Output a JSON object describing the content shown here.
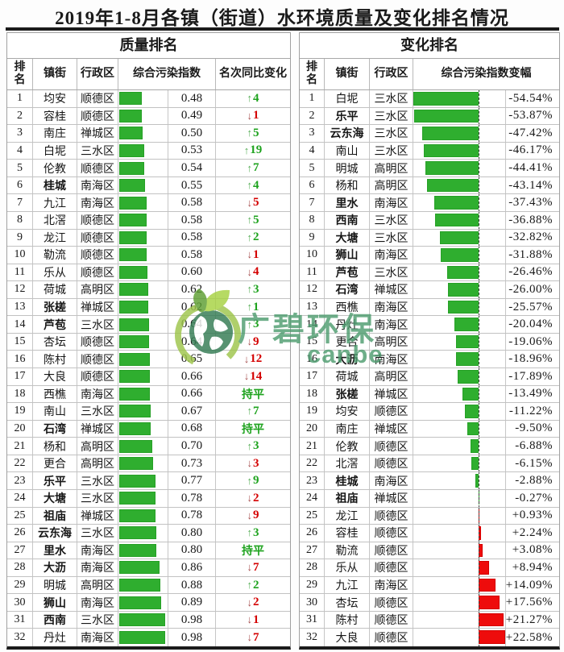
{
  "title": "2019年1-8月各镇（街道）水环境质量及变化排名情况",
  "watermark": {
    "brand": "广碧环保",
    "sub": "canbe",
    "color": "#4f9d70"
  },
  "colors": {
    "bar_green": "#2fae2f",
    "bar_green_border": "#26a026",
    "bar_red": "#ee0c0c",
    "bar_red_border": "#d40000",
    "up": "#1fa31f",
    "up_arrow": "#55ad55",
    "down": "#d40000",
    "down_arrow": "#a85252",
    "flat": "#1fa31f"
  },
  "quality": {
    "section_title": "质量排名",
    "headers": {
      "rank": "排名",
      "town": "镇街",
      "district": "行政区",
      "index": "综合污染指数",
      "change": "名次同比变化"
    },
    "flat_label": "持平",
    "rows": [
      {
        "rank": 1,
        "town": "均安",
        "district": "顺德区",
        "index": 0.48,
        "display": "0.48",
        "dir": "up",
        "n": 4,
        "bold": false
      },
      {
        "rank": 2,
        "town": "容桂",
        "district": "顺德区",
        "index": 0.49,
        "display": "0.49",
        "dir": "down",
        "n": 1,
        "bold": false
      },
      {
        "rank": 3,
        "town": "南庄",
        "district": "禅城区",
        "index": 0.5,
        "display": "0.50",
        "dir": "up",
        "n": 5,
        "bold": false
      },
      {
        "rank": 4,
        "town": "白坭",
        "district": "三水区",
        "index": 0.53,
        "display": "0.53",
        "dir": "up",
        "n": 19,
        "bold": false
      },
      {
        "rank": 5,
        "town": "伦教",
        "district": "顺德区",
        "index": 0.54,
        "display": "0.54",
        "dir": "up",
        "n": 7,
        "bold": false
      },
      {
        "rank": 6,
        "town": "桂城",
        "district": "南海区",
        "index": 0.55,
        "display": "0.55",
        "dir": "up",
        "n": 4,
        "bold": true
      },
      {
        "rank": 7,
        "town": "九江",
        "district": "南海区",
        "index": 0.58,
        "display": "0.58",
        "dir": "down",
        "n": 5,
        "bold": false
      },
      {
        "rank": 8,
        "town": "北滘",
        "district": "顺德区",
        "index": 0.58,
        "display": "0.58",
        "dir": "up",
        "n": 5,
        "bold": false
      },
      {
        "rank": 9,
        "town": "龙江",
        "district": "顺德区",
        "index": 0.58,
        "display": "0.58",
        "dir": "up",
        "n": 2,
        "bold": false
      },
      {
        "rank": 10,
        "town": "勒流",
        "district": "顺德区",
        "index": 0.58,
        "display": "0.58",
        "dir": "down",
        "n": 1,
        "bold": false
      },
      {
        "rank": 11,
        "town": "乐从",
        "district": "顺德区",
        "index": 0.6,
        "display": "0.60",
        "dir": "down",
        "n": 4,
        "bold": false
      },
      {
        "rank": 12,
        "town": "荷城",
        "district": "高明区",
        "index": 0.62,
        "display": "0.62",
        "dir": "up",
        "n": 3,
        "bold": false
      },
      {
        "rank": 13,
        "town": "张槎",
        "district": "禅城区",
        "index": 0.62,
        "display": "0.62",
        "dir": "up",
        "n": 1,
        "bold": true
      },
      {
        "rank": 14,
        "town": "芦苞",
        "district": "三水区",
        "index": 0.64,
        "display": "0.64",
        "dir": "up",
        "n": 3,
        "bold": true
      },
      {
        "rank": 15,
        "town": "杏坛",
        "district": "顺德区",
        "index": 0.64,
        "display": "0.64",
        "dir": "down",
        "n": 9,
        "bold": false
      },
      {
        "rank": 16,
        "town": "陈村",
        "district": "顺德区",
        "index": 0.65,
        "display": "0.65",
        "dir": "down",
        "n": 12,
        "bold": false
      },
      {
        "rank": 17,
        "town": "大良",
        "district": "顺德区",
        "index": 0.66,
        "display": "0.66",
        "dir": "down",
        "n": 14,
        "bold": false
      },
      {
        "rank": 18,
        "town": "西樵",
        "district": "南海区",
        "index": 0.66,
        "display": "0.66",
        "dir": "flat",
        "n": null,
        "bold": false
      },
      {
        "rank": 19,
        "town": "南山",
        "district": "三水区",
        "index": 0.67,
        "display": "0.67",
        "dir": "up",
        "n": 7,
        "bold": false
      },
      {
        "rank": 20,
        "town": "石湾",
        "district": "禅城区",
        "index": 0.68,
        "display": "0.68",
        "dir": "flat",
        "n": null,
        "bold": true
      },
      {
        "rank": 21,
        "town": "杨和",
        "district": "高明区",
        "index": 0.7,
        "display": "0.70",
        "dir": "up",
        "n": 3,
        "bold": false
      },
      {
        "rank": 22,
        "town": "更合",
        "district": "高明区",
        "index": 0.73,
        "display": "0.73",
        "dir": "down",
        "n": 3,
        "bold": false
      },
      {
        "rank": 23,
        "town": "乐平",
        "district": "三水区",
        "index": 0.77,
        "display": "0.77",
        "dir": "up",
        "n": 9,
        "bold": true
      },
      {
        "rank": 24,
        "town": "大塘",
        "district": "三水区",
        "index": 0.78,
        "display": "0.78",
        "dir": "down",
        "n": 2,
        "bold": true
      },
      {
        "rank": 25,
        "town": "祖庙",
        "district": "禅城区",
        "index": 0.78,
        "display": "0.78",
        "dir": "down",
        "n": 9,
        "bold": true
      },
      {
        "rank": 26,
        "town": "云东海",
        "district": "三水区",
        "index": 0.8,
        "display": "0.80",
        "dir": "up",
        "n": 3,
        "bold": true
      },
      {
        "rank": 27,
        "town": "里水",
        "district": "南海区",
        "index": 0.8,
        "display": "0.80",
        "dir": "flat",
        "n": null,
        "bold": true
      },
      {
        "rank": 28,
        "town": "大沥",
        "district": "南海区",
        "index": 0.86,
        "display": "0.86",
        "dir": "down",
        "n": 7,
        "bold": true
      },
      {
        "rank": 29,
        "town": "明城",
        "district": "高明区",
        "index": 0.88,
        "display": "0.88",
        "dir": "up",
        "n": 2,
        "bold": false
      },
      {
        "rank": 30,
        "town": "狮山",
        "district": "南海区",
        "index": 0.89,
        "display": "0.89",
        "dir": "down",
        "n": 2,
        "bold": true
      },
      {
        "rank": 31,
        "town": "西南",
        "district": "三水区",
        "index": 0.98,
        "display": "0.98",
        "dir": "down",
        "n": 1,
        "bold": true
      },
      {
        "rank": 32,
        "town": "丹灶",
        "district": "南海区",
        "index": 0.98,
        "display": "0.98",
        "dir": "down",
        "n": 7,
        "bold": false
      }
    ]
  },
  "change": {
    "section_title": "变化排名",
    "headers": {
      "rank": "排名",
      "town": "镇街",
      "district": "行政区",
      "delta": "综合污染指数变幅"
    },
    "rows": [
      {
        "rank": 1,
        "town": "白坭",
        "district": "三水区",
        "delta": -54.54,
        "label": "-54.54%",
        "bold": false
      },
      {
        "rank": 2,
        "town": "乐平",
        "district": "三水区",
        "delta": -53.87,
        "label": "-53.87%",
        "bold": true
      },
      {
        "rank": 3,
        "town": "云东海",
        "district": "三水区",
        "delta": -47.42,
        "label": "-47.42%",
        "bold": true
      },
      {
        "rank": 4,
        "town": "南山",
        "district": "三水区",
        "delta": -46.17,
        "label": "-46.17%",
        "bold": false
      },
      {
        "rank": 5,
        "town": "明城",
        "district": "高明区",
        "delta": -44.41,
        "label": "-44.41%",
        "bold": false
      },
      {
        "rank": 6,
        "town": "杨和",
        "district": "高明区",
        "delta": -43.14,
        "label": "-43.14%",
        "bold": false
      },
      {
        "rank": 7,
        "town": "里水",
        "district": "南海区",
        "delta": -37.43,
        "label": "-37.43%",
        "bold": true
      },
      {
        "rank": 8,
        "town": "西南",
        "district": "三水区",
        "delta": -36.88,
        "label": "-36.88%",
        "bold": true
      },
      {
        "rank": 9,
        "town": "大塘",
        "district": "三水区",
        "delta": -32.82,
        "label": "-32.82%",
        "bold": true
      },
      {
        "rank": 10,
        "town": "狮山",
        "district": "南海区",
        "delta": -31.88,
        "label": "-31.88%",
        "bold": true
      },
      {
        "rank": 11,
        "town": "芦苞",
        "district": "三水区",
        "delta": -26.46,
        "label": "-26.46%",
        "bold": true
      },
      {
        "rank": 12,
        "town": "石湾",
        "district": "禅城区",
        "delta": -26.0,
        "label": "-26.00%",
        "bold": true
      },
      {
        "rank": 13,
        "town": "西樵",
        "district": "南海区",
        "delta": -25.57,
        "label": "-25.57%",
        "bold": false
      },
      {
        "rank": 14,
        "town": "丹灶",
        "district": "南海区",
        "delta": -20.04,
        "label": "-20.04%",
        "bold": false
      },
      {
        "rank": 15,
        "town": "更合",
        "district": "高明区",
        "delta": -19.06,
        "label": "-19.06%",
        "bold": false
      },
      {
        "rank": 16,
        "town": "大沥",
        "district": "南海区",
        "delta": -18.96,
        "label": "-18.96%",
        "bold": true
      },
      {
        "rank": 17,
        "town": "荷城",
        "district": "高明区",
        "delta": -17.89,
        "label": "-17.89%",
        "bold": false
      },
      {
        "rank": 18,
        "town": "张槎",
        "district": "禅城区",
        "delta": -13.49,
        "label": "-13.49%",
        "bold": true
      },
      {
        "rank": 19,
        "town": "均安",
        "district": "顺德区",
        "delta": -11.22,
        "label": "-11.22%",
        "bold": false
      },
      {
        "rank": 20,
        "town": "南庄",
        "district": "禅城区",
        "delta": -9.5,
        "label": "-9.50%",
        "bold": false
      },
      {
        "rank": 21,
        "town": "伦教",
        "district": "顺德区",
        "delta": -6.88,
        "label": "-6.88%",
        "bold": false
      },
      {
        "rank": 22,
        "town": "北滘",
        "district": "顺德区",
        "delta": -6.15,
        "label": "-6.15%",
        "bold": false
      },
      {
        "rank": 23,
        "town": "桂城",
        "district": "南海区",
        "delta": -2.88,
        "label": "-2.88%",
        "bold": true
      },
      {
        "rank": 24,
        "town": "祖庙",
        "district": "禅城区",
        "delta": -0.27,
        "label": "-0.27%",
        "bold": true
      },
      {
        "rank": 25,
        "town": "龙江",
        "district": "顺德区",
        "delta": 0.93,
        "label": "+0.93%",
        "bold": false
      },
      {
        "rank": 26,
        "town": "容桂",
        "district": "顺德区",
        "delta": 2.24,
        "label": "+2.24%",
        "bold": false
      },
      {
        "rank": 27,
        "town": "勒流",
        "district": "顺德区",
        "delta": 3.08,
        "label": "+3.08%",
        "bold": false
      },
      {
        "rank": 28,
        "town": "乐从",
        "district": "顺德区",
        "delta": 8.94,
        "label": "+8.94%",
        "bold": false
      },
      {
        "rank": 29,
        "town": "九江",
        "district": "南海区",
        "delta": 14.09,
        "label": "+14.09%",
        "bold": false
      },
      {
        "rank": 30,
        "town": "杏坛",
        "district": "顺德区",
        "delta": 17.56,
        "label": "+17.56%",
        "bold": false
      },
      {
        "rank": 31,
        "town": "陈村",
        "district": "顺德区",
        "delta": 21.27,
        "label": "+21.27%",
        "bold": false
      },
      {
        "rank": 32,
        "town": "大良",
        "district": "顺德区",
        "delta": 22.58,
        "label": "+22.58%",
        "bold": false
      }
    ]
  },
  "chart_data": [
    {
      "type": "bar",
      "orientation": "horizontal",
      "title": "质量排名",
      "xlabel": "综合污染指数",
      "xlim": [
        0,
        1.0
      ],
      "categories": [
        "均安",
        "容桂",
        "南庄",
        "白坭",
        "伦教",
        "桂城",
        "九江",
        "北滘",
        "龙江",
        "勒流",
        "乐从",
        "荷城",
        "张槎",
        "芦苞",
        "杏坛",
        "陈村",
        "大良",
        "西樵",
        "南山",
        "石湾",
        "杨和",
        "更合",
        "乐平",
        "大塘",
        "祖庙",
        "云东海",
        "里水",
        "大沥",
        "明城",
        "狮山",
        "西南",
        "丹灶"
      ],
      "values": [
        0.48,
        0.49,
        0.5,
        0.53,
        0.54,
        0.55,
        0.58,
        0.58,
        0.58,
        0.58,
        0.6,
        0.62,
        0.62,
        0.64,
        0.64,
        0.65,
        0.66,
        0.66,
        0.67,
        0.68,
        0.7,
        0.73,
        0.77,
        0.78,
        0.78,
        0.8,
        0.8,
        0.86,
        0.88,
        0.89,
        0.98,
        0.98
      ],
      "rank_change_vs_last_year": [
        "+4",
        "-1",
        "+5",
        "+19",
        "+7",
        "+4",
        "-5",
        "+5",
        "+2",
        "-1",
        "-4",
        "+3",
        "+1",
        "+3",
        "-9",
        "-12",
        "-14",
        "持平",
        "+7",
        "持平",
        "+3",
        "-3",
        "+9",
        "-2",
        "-9",
        "+3",
        "持平",
        "-7",
        "+2",
        "-2",
        "-1",
        "-7"
      ],
      "bar_color": "#2fae2f",
      "legend": false,
      "grid": false
    },
    {
      "type": "bar",
      "orientation": "horizontal",
      "title": "变化排名",
      "xlabel": "综合污染指数变幅 (%)",
      "xlim": [
        -60,
        25
      ],
      "categories": [
        "白坭",
        "乐平",
        "云东海",
        "南山",
        "明城",
        "杨和",
        "里水",
        "西南",
        "大塘",
        "狮山",
        "芦苞",
        "石湾",
        "西樵",
        "丹灶",
        "更合",
        "大沥",
        "荷城",
        "张槎",
        "均安",
        "南庄",
        "伦教",
        "北滘",
        "桂城",
        "祖庙",
        "龙江",
        "容桂",
        "勒流",
        "乐从",
        "九江",
        "杏坛",
        "陈村",
        "大良"
      ],
      "values": [
        -54.54,
        -53.87,
        -47.42,
        -46.17,
        -44.41,
        -43.14,
        -37.43,
        -36.88,
        -32.82,
        -31.88,
        -26.46,
        -26.0,
        -25.57,
        -20.04,
        -19.06,
        -18.96,
        -17.89,
        -13.49,
        -11.22,
        -9.5,
        -6.88,
        -6.15,
        -2.88,
        -0.27,
        0.93,
        2.24,
        3.08,
        8.94,
        14.09,
        17.56,
        21.27,
        22.58
      ],
      "negative_color": "#2fae2f",
      "positive_color": "#ee0c0c",
      "zero_line": "dashed",
      "legend": false,
      "grid": false
    }
  ]
}
